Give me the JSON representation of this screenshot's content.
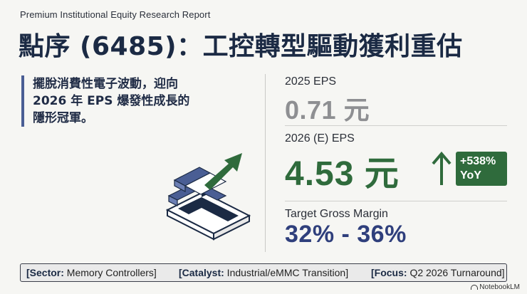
{
  "header": {
    "eyebrow": "Premium Institutional Equity Research Report",
    "title": "點序 (6485)：工控轉型驅動獲利重估"
  },
  "thesis": {
    "line1": "擺脫消費性電子波動，迎向",
    "line2": "2026 年 EPS 爆發性成長的",
    "line3": "隱形冠軍。"
  },
  "metrics": {
    "eps_2025": {
      "label": "2025 EPS",
      "value": "0.71 元"
    },
    "eps_2026": {
      "label": "2026 (E) EPS",
      "value": "4.53 元",
      "growth_line1": "+538%",
      "growth_line2": "YoY",
      "icon": "arrow-up-icon"
    },
    "gross_margin": {
      "label": "Target Gross Margin",
      "value": "32% - 36%"
    }
  },
  "tags": {
    "sector_key": "[Sector:",
    "sector_val": " Memory Controllers]",
    "catalyst_key": "[Catalyst:",
    "catalyst_val": " Industrial/eMMC Transition]",
    "focus_key": "[Focus:",
    "focus_val": " Q2 2026 Turnaround]"
  },
  "brand": {
    "name": "NotebookLM"
  },
  "colors": {
    "navy": "#1b2a44",
    "green": "#2f6b3c",
    "blue": "#4a5e94",
    "gray_value": "#8e8f92"
  }
}
